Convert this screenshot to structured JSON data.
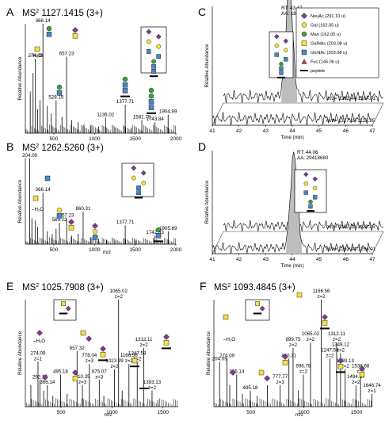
{
  "chart_data": [
    {
      "panel": "A",
      "type": "spectrum",
      "title_prefix": "MS",
      "title_sup": "2",
      "title": "1127.1415 (3+)",
      "ylabel": "Relative Abundance",
      "xlabel": "",
      "xlim": [
        150,
        2000
      ],
      "xticks": [
        500,
        1000,
        1500,
        2000
      ],
      "peaks": [
        [
          210,
          0.38
        ],
        [
          245,
          0.55
        ],
        [
          274.09,
          0.68
        ],
        [
          300,
          0.22
        ],
        [
          330,
          0.3
        ],
        [
          366.14,
          1.0
        ],
        [
          420,
          0.25
        ],
        [
          470,
          0.18
        ],
        [
          528.19,
          0.3
        ],
        [
          600,
          0.15
        ],
        [
          657.23,
          0.7
        ],
        [
          720,
          0.12
        ],
        [
          800,
          0.1
        ],
        [
          870,
          0.08
        ],
        [
          950,
          0.07
        ],
        [
          1050,
          0.06
        ],
        [
          1136.02,
          0.14
        ],
        [
          1250,
          0.05
        ],
        [
          1377.71,
          0.26
        ],
        [
          1450,
          0.05
        ],
        [
          1581.79,
          0.12
        ],
        [
          1743.84,
          0.1
        ],
        [
          1904.89,
          0.17
        ]
      ],
      "labels": [
        {
          "mz": 274.09,
          "t": "274.09"
        },
        {
          "mz": 366.14,
          "t": "366.14"
        },
        {
          "mz": 528.19,
          "t": "528.19"
        },
        {
          "mz": 657.23,
          "t": "657.23"
        },
        {
          "mz": 1136.02,
          "t": "1136.02"
        },
        {
          "mz": 1377.71,
          "t": "1377.71"
        },
        {
          "mz": 1581.79,
          "t": "1581.79"
        },
        {
          "mz": 1743.84,
          "t": "1743.84"
        },
        {
          "mz": 1904.89,
          "t": "1904.89"
        }
      ],
      "annotations": [
        "–H₂O"
      ]
    },
    {
      "panel": "B",
      "type": "spectrum",
      "title_prefix": "MS",
      "title_sup": "2",
      "title": "1262.5260 (3+)",
      "ylabel": "Relative Abundance",
      "xlabel": "m/z",
      "xlim": [
        150,
        2000
      ],
      "xticks": [
        500,
        1000,
        1500,
        2000
      ],
      "peaks": [
        [
          204.09,
          1.0
        ],
        [
          230,
          0.3
        ],
        [
          274.09,
          0.28
        ],
        [
          300,
          0.2
        ],
        [
          366.14,
          0.6
        ],
        [
          420,
          0.15
        ],
        [
          480,
          0.12
        ],
        [
          528,
          0.18
        ],
        [
          569.22,
          0.25
        ],
        [
          657.23,
          0.3
        ],
        [
          720,
          0.1
        ],
        [
          800,
          0.12
        ],
        [
          860.31,
          0.38
        ],
        [
          950,
          0.08
        ],
        [
          1050,
          0.06
        ],
        [
          1150,
          0.05
        ],
        [
          1250,
          0.04
        ],
        [
          1377.71,
          0.22
        ],
        [
          1500,
          0.04
        ],
        [
          1742.83,
          0.1
        ],
        [
          1905.89,
          0.15
        ]
      ],
      "labels": [
        {
          "mz": 204.09,
          "t": "204.09"
        },
        {
          "mz": 366.14,
          "t": "366.14"
        },
        {
          "mz": 569.22,
          "t": "569.22"
        },
        {
          "mz": 657.23,
          "t": "657.23"
        },
        {
          "mz": 860.31,
          "t": "860.31"
        },
        {
          "mz": 1377.71,
          "t": "1377.71"
        },
        {
          "mz": 1742.83,
          "t": "1742.83"
        },
        {
          "mz": 1905.89,
          "t": "1905.89"
        }
      ],
      "annotations": [
        "–H₂O"
      ]
    },
    {
      "panel": "C",
      "type": "chromatogram",
      "ylabel": "Relative Abundance",
      "xlabel": "Time (min)",
      "xlim": [
        41,
        47
      ],
      "xticks": [
        41,
        42,
        43,
        44,
        45,
        46,
        47
      ],
      "rt": "RT: 43.47",
      "aa": "AA: 18536784",
      "traces": [
        "m/z= 1262.44-1264.01",
        "m/z= 1127.10-1128.25"
      ]
    },
    {
      "panel": "D",
      "type": "chromatogram",
      "ylabel": "Relative Abundance",
      "xlabel": "Time (min)",
      "xlim": [
        41,
        47
      ],
      "xticks": [
        41,
        42,
        43,
        44,
        45,
        46,
        47
      ],
      "rt": "RT: 44.06",
      "aa": "AA: 29418680",
      "traces": [
        "m/z= 1127.10-1128.25",
        "m/z= 1262.44-1264.01"
      ]
    },
    {
      "panel": "E",
      "type": "spectrum",
      "title_prefix": "MS",
      "title_sup": "2",
      "title": "1025.7908 (3+)",
      "ylabel": "Relative Abundance",
      "xlabel": "m/z",
      "xlim": [
        150,
        1650
      ],
      "xticks": [
        500,
        1000,
        1500
      ],
      "peaks": [
        [
          204,
          0.2
        ],
        [
          274.09,
          0.42
        ],
        [
          292.1,
          0.25
        ],
        [
          330,
          0.15
        ],
        [
          366.14,
          0.2
        ],
        [
          420,
          0.1
        ],
        [
          495.18,
          0.3
        ],
        [
          560,
          0.12
        ],
        [
          657.32,
          0.52
        ],
        [
          710.35,
          0.2
        ],
        [
          778.04,
          0.4
        ],
        [
          875.07,
          0.25
        ],
        [
          920,
          0.1
        ],
        [
          1023.99,
          0.35
        ],
        [
          1065.02,
          1.0
        ],
        [
          1100,
          0.15
        ],
        [
          1166.56,
          0.4
        ],
        [
          1247.58,
          0.42
        ],
        [
          1312.11,
          0.55
        ],
        [
          1393.13,
          0.15
        ],
        [
          1450,
          0.06
        ]
      ],
      "labels": [
        {
          "mz": 274.09,
          "t": "274.09",
          "z": "z=1"
        },
        {
          "mz": 292.1,
          "t": "292.10"
        },
        {
          "mz": 366.14,
          "t": "366.14"
        },
        {
          "mz": 495.18,
          "t": "495.18"
        },
        {
          "mz": 657.32,
          "t": "657.32"
        },
        {
          "mz": 710.35,
          "t": "710.35",
          "z": "z=3"
        },
        {
          "mz": 778.04,
          "t": "778.04",
          "z": "z=3"
        },
        {
          "mz": 875.07,
          "t": "875.07",
          "z": "z=3"
        },
        {
          "mz": 1023.99,
          "t": "1023.99",
          "z": "z=2"
        },
        {
          "mz": 1065.02,
          "t": "1065.02",
          "z": "z=2"
        },
        {
          "mz": 1166.56,
          "t": "1166.56",
          "z": "z=2"
        },
        {
          "mz": 1247.58,
          "t": "1247.58",
          "z": "z=2"
        },
        {
          "mz": 1312.11,
          "t": "1312.11",
          "z": "z=2"
        },
        {
          "mz": 1393.13,
          "t": "1393.13",
          "z": "z=2"
        }
      ],
      "annotations": [
        "–H₂O"
      ]
    },
    {
      "panel": "F",
      "type": "spectrum",
      "title_prefix": "MS",
      "title_sup": "2",
      "title": "1093.4845 (3+)",
      "ylabel": "Relative Abundance",
      "xlabel": "m/z",
      "xlim": [
        150,
        1650
      ],
      "xticks": [
        500,
        1000,
        1500
      ],
      "peaks": [
        [
          204.09,
          0.42
        ],
        [
          274.09,
          0.45
        ],
        [
          300,
          0.2
        ],
        [
          366.14,
          0.3
        ],
        [
          420,
          0.12
        ],
        [
          495.18,
          0.15
        ],
        [
          560,
          0.1
        ],
        [
          657,
          0.2
        ],
        [
          777.77,
          0.2
        ],
        [
          860.31,
          0.45
        ],
        [
          899.75,
          0.55
        ],
        [
          950,
          0.15
        ],
        [
          996.78,
          0.3
        ],
        [
          1065.02,
          0.6
        ],
        [
          1166.56,
          1.0
        ],
        [
          1247.58,
          0.45
        ],
        [
          1312.11,
          0.6
        ],
        [
          1349.12,
          0.5
        ],
        [
          1393.13,
          0.35
        ],
        [
          1494.67,
          0.2
        ],
        [
          1538.68,
          0.3
        ],
        [
          1646.74,
          0.12
        ]
      ],
      "labels": [
        {
          "mz": 204.09,
          "t": "204.09"
        },
        {
          "mz": 274.09,
          "t": "274.09"
        },
        {
          "mz": 366.14,
          "t": "366.14"
        },
        {
          "mz": 495.18,
          "t": "495.18"
        },
        {
          "mz": 777.77,
          "t": "777.77",
          "z": "z=3"
        },
        {
          "mz": 860.31,
          "t": "860.31"
        },
        {
          "mz": 899.75,
          "t": "899.75",
          "z": "z=2"
        },
        {
          "mz": 996.78,
          "t": "996.78",
          "z": "z=2"
        },
        {
          "mz": 1065.02,
          "t": "1065.02",
          "z": "z=2"
        },
        {
          "mz": 1166.56,
          "t": "1166.56",
          "z": "z=2"
        },
        {
          "mz": 1247.58,
          "t": "1247.58",
          "z": "z=2"
        },
        {
          "mz": 1312.11,
          "t": "1312.11",
          "z": "z=2"
        },
        {
          "mz": 1349.12,
          "t": "1349.12",
          "z": "z=2"
        },
        {
          "mz": 1393.13,
          "t": "1393.13",
          "z": "z=2"
        },
        {
          "mz": 1494.67,
          "t": "1494.67",
          "z": "z=2"
        },
        {
          "mz": 1538.68,
          "t": "1538.68",
          "z": "z=2"
        },
        {
          "mz": 1646.74,
          "t": "1646.74",
          "z": "z=1"
        }
      ],
      "annotations": [
        "–H₂O"
      ]
    }
  ],
  "legend": [
    {
      "shape": "diamond",
      "color": "#7b3f8e",
      "label": "NeuAc (291.10 u)"
    },
    {
      "shape": "circle",
      "color": "#f5e23a",
      "label": "Gal (162.05 u)"
    },
    {
      "shape": "circle",
      "color": "#3aa23a",
      "label": "Man (162.05 u)"
    },
    {
      "shape": "square",
      "color": "#f5e23a",
      "label": "GalNAc (203.08 u)"
    },
    {
      "shape": "square",
      "color": "#4a86c8",
      "label": "GlcNAc (203.08 u)"
    },
    {
      "shape": "triangle",
      "color": "#d83a3a",
      "label": "Fuc (146.06 u)"
    },
    {
      "shape": "line",
      "color": "#000000",
      "label": "peptide"
    }
  ],
  "colors": {
    "neuac": "#7b3f8e",
    "gal": "#f5e23a",
    "man": "#3aa23a",
    "glcnac": "#4a86c8",
    "fuc": "#d83a3a",
    "peakfill": "#bdbdbd"
  }
}
